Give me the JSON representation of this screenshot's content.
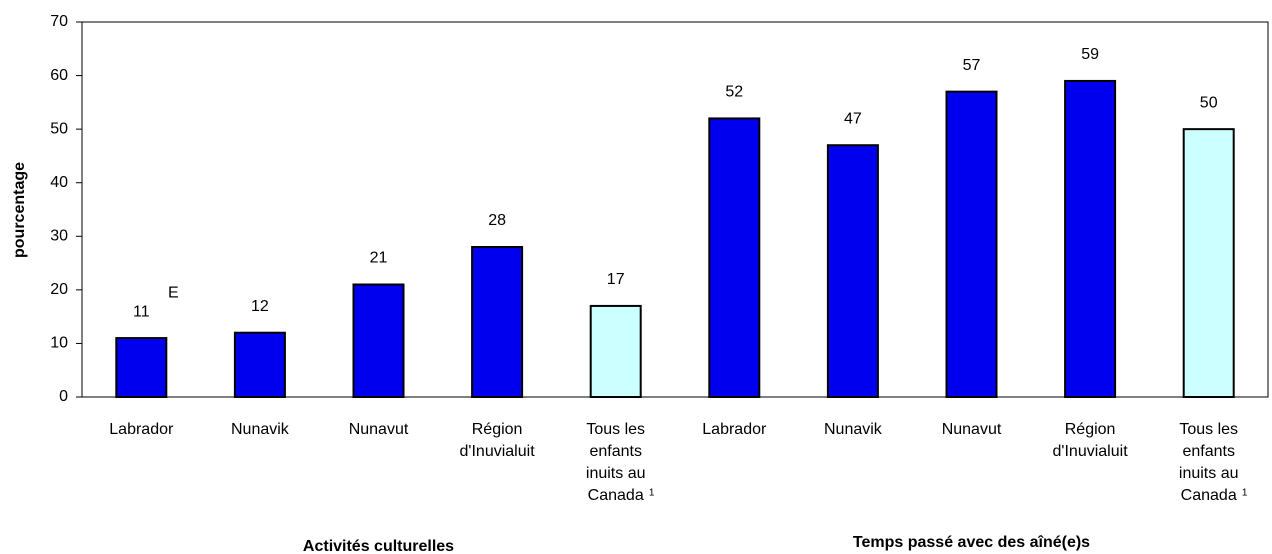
{
  "chart_data": {
    "type": "bar",
    "y_label": "pourcentage",
    "categories": [
      [
        "Labrador"
      ],
      [
        "Nunavik"
      ],
      [
        "Nunavut"
      ],
      [
        "Région",
        "d'Inuvialuit"
      ],
      [
        "Tous les",
        "enfants",
        "inuits au",
        "Canada"
      ],
      [
        "Labrador"
      ],
      [
        "Nunavik"
      ],
      [
        "Nunavut"
      ],
      [
        "Région",
        "d'Inuvialuit"
      ],
      [
        "Tous les",
        "enfants",
        "inuits au",
        "Canada"
      ]
    ],
    "values": [
      11,
      12,
      21,
      28,
      17,
      52,
      47,
      57,
      59,
      50
    ],
    "colors": [
      "#0000ee",
      "#0000ee",
      "#0000ee",
      "#0000ee",
      "#ccffff",
      "#0000ee",
      "#0000ee",
      "#0000ee",
      "#0000ee",
      "#ccffff"
    ],
    "groups": [
      {
        "label": "Activités culturelles",
        "start": 0,
        "end": 4
      },
      {
        "label": "Temps passé avec des aîné(e)s",
        "start": 5,
        "end": 9
      }
    ],
    "annotations": [
      {
        "text": "E",
        "category": 0
      },
      {
        "text": "1",
        "category": 4
      },
      {
        "text": "1",
        "category": 9
      }
    ],
    "ylim": [
      0,
      70
    ],
    "yticks": [
      0,
      10,
      20,
      30,
      40,
      50,
      60,
      70
    ],
    "grid": false
  }
}
